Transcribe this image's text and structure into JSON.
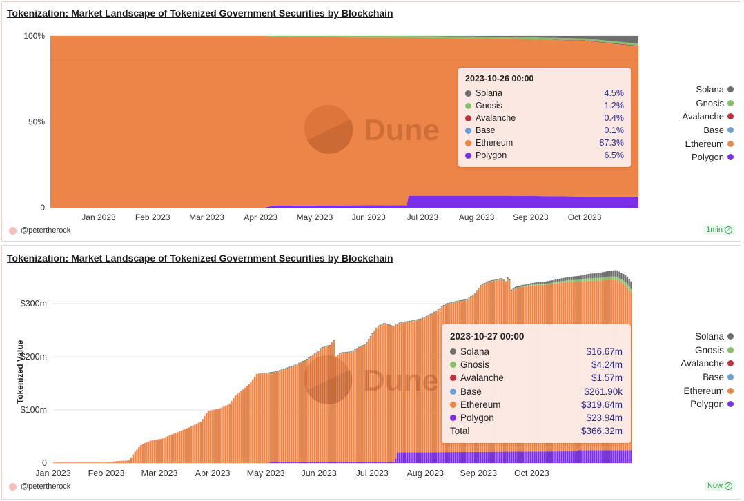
{
  "colors": {
    "solana": "#6e6e6e",
    "gnosis": "#86c06a",
    "avalanche": "#c0303b",
    "base": "#6b9fd8",
    "ethereum": "#ee8548",
    "polygon": "#7b2fe8"
  },
  "author": "@petertherock",
  "panel1": {
    "title": "Tokenization: Market Landscape of Tokenized Government Securities by Blockchain",
    "badge": "1min",
    "watermark": "Dune",
    "legend": [
      "Solana",
      "Gnosis",
      "Avalanche",
      "Base",
      "Ethereum",
      "Polygon"
    ],
    "tooltip": {
      "date": "2023-10-26 00:00",
      "rows": [
        {
          "name": "Solana",
          "value": "4.5%"
        },
        {
          "name": "Gnosis",
          "value": "1.2%"
        },
        {
          "name": "Avalanche",
          "value": "0.4%"
        },
        {
          "name": "Base",
          "value": "0.1%"
        },
        {
          "name": "Ethereum",
          "value": "87.3%"
        },
        {
          "name": "Polygon",
          "value": "6.5%"
        }
      ]
    }
  },
  "panel2": {
    "title": "Tokenization: Market Landscape of Tokenized Government Securities by Blockchain",
    "badge": "Now",
    "watermark": "Dune",
    "ylabel": "Tokenized Value",
    "legend": [
      "Solana",
      "Gnosis",
      "Avalanche",
      "Base",
      "Ethereum",
      "Polygon"
    ],
    "tooltip": {
      "date": "2023-10-27 00:00",
      "rows": [
        {
          "name": "Solana",
          "value": "$16.67m"
        },
        {
          "name": "Gnosis",
          "value": "$4.24m"
        },
        {
          "name": "Avalanche",
          "value": "$1.57m"
        },
        {
          "name": "Base",
          "value": "$261.90k"
        },
        {
          "name": "Ethereum",
          "value": "$319.64m"
        },
        {
          "name": "Polygon",
          "value": "$23.94m"
        }
      ],
      "total_label": "Total",
      "total_value": "$366.32m"
    }
  },
  "chart_data": [
    {
      "type": "area",
      "stacked": "percent",
      "title": "Tokenization: Market Landscape of Tokenized Government Securities by Blockchain",
      "x_ticks": [
        "Jan 2023",
        "Feb 2023",
        "Mar 2023",
        "Apr 2023",
        "May 2023",
        "Jun 2023",
        "Jul 2023",
        "Aug 2023",
        "Sep 2023",
        "Oct 2023"
      ],
      "y_ticks": [
        "100%",
        "50%",
        "0"
      ],
      "ylim": [
        0,
        100
      ],
      "x_days": [
        0,
        120,
        125,
        200,
        201,
        255,
        300,
        330
      ],
      "series": [
        {
          "name": "Polygon",
          "values": [
            0,
            0,
            1.2,
            1.5,
            7.0,
            7.0,
            6.5,
            6.5
          ]
        },
        {
          "name": "Ethereum",
          "values": [
            100,
            100,
            98.2,
            97.5,
            92.0,
            91.5,
            90.5,
            87.3
          ]
        },
        {
          "name": "Base",
          "values": [
            0,
            0,
            0,
            0,
            0,
            0,
            0.1,
            0.1
          ]
        },
        {
          "name": "Avalanche",
          "values": [
            0,
            0,
            0,
            0,
            0,
            0,
            0.3,
            0.4
          ]
        },
        {
          "name": "Gnosis",
          "values": [
            0,
            0,
            0.6,
            1.0,
            1.0,
            1.0,
            1.1,
            1.2
          ]
        },
        {
          "name": "Solana",
          "values": [
            0,
            0,
            0,
            0,
            0,
            0.5,
            1.5,
            4.5
          ]
        }
      ]
    },
    {
      "type": "bar",
      "stacked": "absolute",
      "title": "Tokenization: Market Landscape of Tokenized Government Securities by Blockchain",
      "ylabel": "Tokenized Value",
      "x_ticks": [
        "Jan 2023",
        "Feb 2023",
        "Mar 2023",
        "Apr 2023",
        "May 2023",
        "Jun 2023",
        "Jul 2023",
        "Aug 2023",
        "Sep 2023",
        "Oct 2023"
      ],
      "y_ticks": [
        "$300m",
        "$200m",
        "$100m",
        "0"
      ],
      "ylim": [
        0,
        370
      ],
      "unit": "$m",
      "total_points": [
        [
          0,
          1
        ],
        [
          30,
          1
        ],
        [
          37,
          4
        ],
        [
          43,
          5
        ],
        [
          46,
          20
        ],
        [
          50,
          35
        ],
        [
          55,
          42
        ],
        [
          62,
          46
        ],
        [
          66,
          52
        ],
        [
          72,
          60
        ],
        [
          78,
          68
        ],
        [
          84,
          78
        ],
        [
          88,
          98
        ],
        [
          94,
          102
        ],
        [
          100,
          110
        ],
        [
          104,
          128
        ],
        [
          108,
          138
        ],
        [
          112,
          150
        ],
        [
          116,
          168
        ],
        [
          122,
          170
        ],
        [
          126,
          172
        ],
        [
          132,
          178
        ],
        [
          138,
          185
        ],
        [
          144,
          195
        ],
        [
          150,
          208
        ],
        [
          154,
          220
        ],
        [
          158,
          222
        ],
        [
          160,
          232
        ],
        [
          161,
          200
        ],
        [
          164,
          208
        ],
        [
          170,
          210
        ],
        [
          174,
          218
        ],
        [
          178,
          224
        ],
        [
          185,
          258
        ],
        [
          189,
          264
        ],
        [
          194,
          258
        ],
        [
          198,
          265
        ],
        [
          204,
          268
        ],
        [
          210,
          272
        ],
        [
          216,
          282
        ],
        [
          220,
          290
        ],
        [
          224,
          300
        ],
        [
          230,
          305
        ],
        [
          236,
          308
        ],
        [
          240,
          318
        ],
        [
          244,
          335
        ],
        [
          248,
          342
        ],
        [
          252,
          345
        ],
        [
          256,
          348
        ],
        [
          259,
          340
        ],
        [
          260,
          365
        ],
        [
          261,
          325
        ],
        [
          264,
          332
        ],
        [
          268,
          335
        ],
        [
          272,
          338
        ],
        [
          276,
          340
        ],
        [
          282,
          342
        ],
        [
          288,
          346
        ],
        [
          294,
          350
        ],
        [
          300,
          352
        ],
        [
          306,
          356
        ],
        [
          312,
          358
        ],
        [
          318,
          362
        ],
        [
          322,
          363
        ],
        [
          326,
          355
        ],
        [
          328,
          350
        ],
        [
          330,
          342
        ]
      ],
      "polygon_points": [
        [
          0,
          0
        ],
        [
          123,
          0
        ],
        [
          124,
          2
        ],
        [
          195,
          2
        ],
        [
          196,
          20
        ],
        [
          290,
          22
        ],
        [
          299,
          22
        ],
        [
          300,
          24
        ],
        [
          330,
          24
        ]
      ],
      "extra_points": [
        [
          0,
          0
        ],
        [
          120,
          0
        ],
        [
          121,
          2
        ],
        [
          250,
          2
        ],
        [
          270,
          4
        ],
        [
          290,
          8
        ],
        [
          310,
          14
        ],
        [
          320,
          18
        ],
        [
          327,
          20
        ],
        [
          330,
          22
        ]
      ]
    }
  ]
}
